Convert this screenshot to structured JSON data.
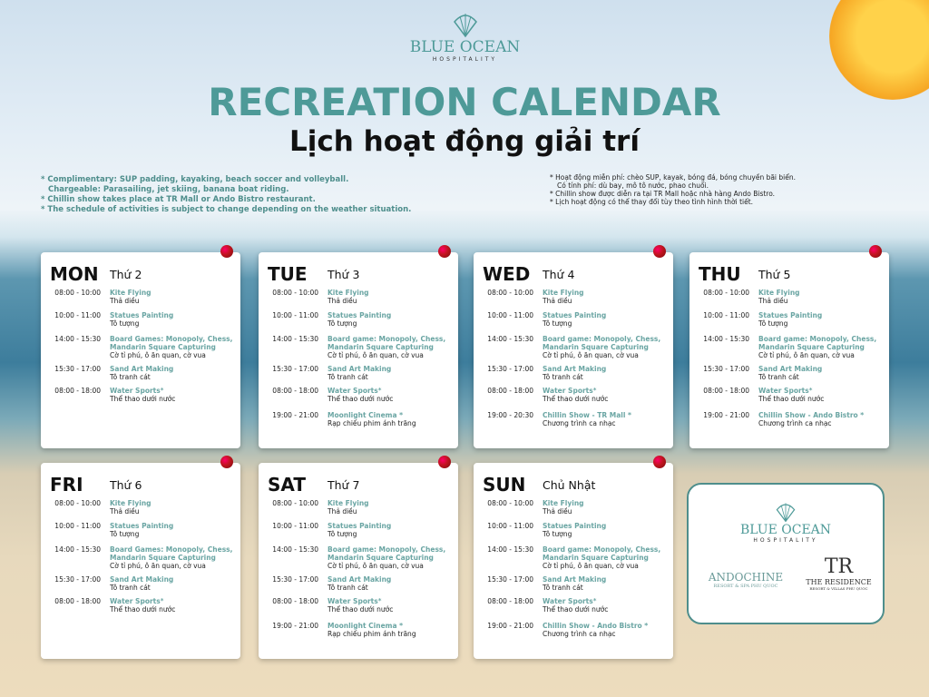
{
  "header": {
    "brand": "BLUE OCEAN",
    "brand_sub": "HOSPITALITY",
    "title": "RECREATION CALENDAR",
    "subtitle": "Lịch hoạt động giải trí"
  },
  "notes_en": [
    "* Complimentary: SUP padding, kayaking, beach soccer and volleyball.",
    "   Chargeable: Parasailing, jet skiing, banana boat riding.",
    "* Chillin show takes place at TR Mall or Ando Bistro restaurant.",
    "* The schedule of activities is subject to change depending on the weather situation."
  ],
  "notes_vi": [
    "* Hoạt động miễn phí: chèo SUP, kayak, bóng đá, bóng chuyền bãi biển.",
    "   Có tính phí: dù bay, mô tô nước, phao chuối.",
    "* Chillin show được diễn ra tại TR Mall hoặc nhà hàng Ando Bistro.",
    "* Lịch hoạt động có thể thay đổi tùy theo tình hình thời tiết."
  ],
  "days": [
    {
      "day": "MON",
      "day_vi": "Thứ 2",
      "activities": [
        {
          "time": "08:00 - 10:00",
          "en": "Kite Flying",
          "vi": "Thả diều"
        },
        {
          "time": "10:00 - 11:00",
          "en": "Statues Painting",
          "vi": "Tô tượng"
        },
        {
          "time": "14:00 - 15:30",
          "en": "Board Games: Monopoly, Chess, Mandarin Square Capturing",
          "vi": "Cờ tỉ phú, ô ăn quan, cờ vua"
        },
        {
          "time": "15:30 - 17:00",
          "en": "Sand Art Making",
          "vi": "Tô tranh cát"
        },
        {
          "time": "08:00 - 18:00",
          "en": "Water Sports",
          "star": "*",
          "vi": "Thể thao dưới nước"
        }
      ]
    },
    {
      "day": "TUE",
      "day_vi": "Thứ 3",
      "activities": [
        {
          "time": "08:00 - 10:00",
          "en": "Kite Flying",
          "vi": "Thả diều"
        },
        {
          "time": "10:00 - 11:00",
          "en": "Statues Painting",
          "vi": "Tô tượng"
        },
        {
          "time": "14:00 - 15:30",
          "en": "Board game: Monopoly, Chess, Mandarin Square Capturing",
          "vi": "Cờ tỉ phú, ô ăn quan, cờ vua"
        },
        {
          "time": "15:30 - 17:00",
          "en": "Sand Art Making",
          "vi": "Tô tranh cát"
        },
        {
          "time": "08:00 - 18:00",
          "en": "Water Sports",
          "star": "*",
          "vi": "Thể thao dưới nước"
        },
        {
          "time": "19:00 - 21:00",
          "en": "Moonlight Cinema *",
          "vi": "Rạp chiếu phim ánh trăng"
        }
      ]
    },
    {
      "day": "WED",
      "day_vi": "Thứ 4",
      "activities": [
        {
          "time": "08:00 - 10:00",
          "en": "Kite Flying",
          "vi": "Thả diều"
        },
        {
          "time": "10:00 - 11:00",
          "en": "Statues Painting",
          "vi": "Tô tượng"
        },
        {
          "time": "14:00 - 15:30",
          "en": "Board game: Monopoly, Chess, Mandarin Square Capturing",
          "vi": "Cờ tỉ phú, ô ăn quan, cờ vua"
        },
        {
          "time": "15:30 - 17:00",
          "en": "Sand Art Making",
          "vi": "Tô tranh cát"
        },
        {
          "time": "08:00 - 18:00",
          "en": "Water Sports",
          "star": "*",
          "vi": "Thể thao dưới nước"
        },
        {
          "time": "19:00 - 20:30",
          "en": "Chillin Show - TR Mall *",
          "vi": "Chương trình ca nhạc"
        }
      ]
    },
    {
      "day": "THU",
      "day_vi": "Thứ 5",
      "activities": [
        {
          "time": "08:00 - 10:00",
          "en": "Kite Flying",
          "vi": "Thả diều"
        },
        {
          "time": "10:00 - 11:00",
          "en": "Statues Painting",
          "vi": "Tô tượng"
        },
        {
          "time": "14:00 - 15:30",
          "en": "Board game: Monopoly, Chess, Mandarin Square Capturing",
          "vi": "Cờ tỉ phú, ô ăn quan, cờ vua"
        },
        {
          "time": "15:30 - 17:00",
          "en": "Sand Art Making",
          "vi": "Tô tranh cát"
        },
        {
          "time": "08:00 - 18:00",
          "en": "Water Sports",
          "star": "*",
          "vi": "Thể thao dưới nước"
        },
        {
          "time": "19:00 - 21:00",
          "en": "Chillin Show - Ando Bistro *",
          "vi": "Chương trình ca nhạc"
        }
      ]
    },
    {
      "day": "FRI",
      "day_vi": "Thứ 6",
      "activities": [
        {
          "time": "08:00 - 10:00",
          "en": "Kite Flying",
          "vi": "Thả diều"
        },
        {
          "time": "10:00 - 11:00",
          "en": "Statues Painting",
          "vi": "Tô tượng"
        },
        {
          "time": "14:00 - 15:30",
          "en": "Board Games: Monopoly, Chess, Mandarin Square Capturing",
          "vi": "Cờ tỉ phú, ô ăn quan, cờ vua"
        },
        {
          "time": "15:30 - 17:00",
          "en": "Sand Art Making",
          "vi": "Tô tranh cát"
        },
        {
          "time": "08:00 - 18:00",
          "en": "Water Sports",
          "star": "*",
          "vi": "Thể thao dưới nước"
        }
      ]
    },
    {
      "day": "SAT",
      "day_vi": "Thứ 7",
      "activities": [
        {
          "time": "08:00 - 10:00",
          "en": "Kite Flying",
          "vi": "Thả diều"
        },
        {
          "time": "10:00 - 11:00",
          "en": "Statues Painting",
          "vi": "Tô tượng"
        },
        {
          "time": "14:00 - 15:30",
          "en": "Board game: Monopoly, Chess, Mandarin Square Capturing",
          "vi": "Cờ tỉ phú, ô ăn quan, cờ vua"
        },
        {
          "time": "15:30 - 17:00",
          "en": "Sand Art Making",
          "vi": "Tô tranh cát"
        },
        {
          "time": "08:00 - 18:00",
          "en": "Water Sports",
          "star": "*",
          "vi": "Thể thao dưới nước"
        },
        {
          "time": "19:00 - 21:00",
          "en": "Moonlight Cinema *",
          "vi": "Rạp chiếu phim ánh trăng"
        }
      ]
    },
    {
      "day": "SUN",
      "day_vi": "Chủ Nhật",
      "activities": [
        {
          "time": "08:00 - 10:00",
          "en": "Kite Flying",
          "vi": "Thả diều"
        },
        {
          "time": "10:00 - 11:00",
          "en": "Statues Painting",
          "vi": "Tô tượng"
        },
        {
          "time": "14:00 - 15:30",
          "en": "Board game: Monopoly, Chess, Mandarin Square Capturing",
          "vi": "Cờ tỉ phú, ô ăn quan, cờ vua"
        },
        {
          "time": "15:30 - 17:00",
          "en": "Sand Art Making",
          "vi": "Tô tranh cát"
        },
        {
          "time": "08:00 - 18:00",
          "en": "Water Sports",
          "star": "*",
          "vi": "Thể thao dưới nước"
        },
        {
          "time": "19:00 - 21:00",
          "en": "Chillin Show - Ando Bistro *",
          "vi": "Chương trình ca nhạc"
        }
      ]
    }
  ],
  "partners": {
    "brand": "BLUE OCEAN",
    "brand_sub": "HOSPITALITY",
    "andochine": "ANDOCHINE",
    "andochine_sub": "RESORT & SPA PHU QUOC",
    "residence_mark": "TR",
    "residence": "THE RESIDENCE",
    "residence_sub": "RESORT & VILLAS PHU QUOC"
  },
  "colors": {
    "accent": "#4e9a98",
    "pin": "#c0141e"
  }
}
